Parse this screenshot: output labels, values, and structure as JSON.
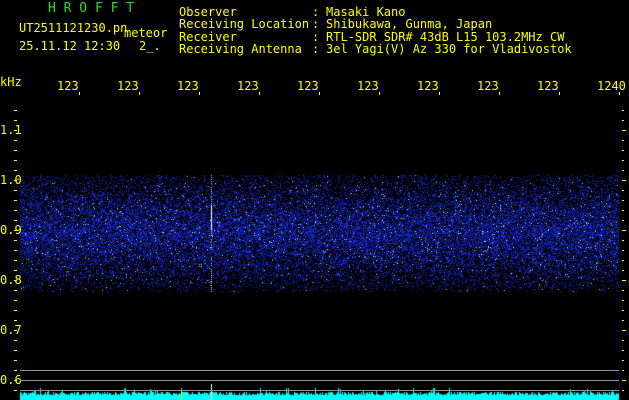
{
  "app": {
    "logo": "H R O F F T"
  },
  "file": {
    "name": "UT2511121230.pn",
    "mode": "meteor",
    "datetime": "25.11.12 12:30",
    "count": "2_."
  },
  "info": [
    {
      "label": "Observer",
      "value": "Masaki Kano"
    },
    {
      "label": "Receiving Location",
      "value": "Shibukawa, Gunma, Japan"
    },
    {
      "label": "Receiver",
      "value": "RTL-SDR SDR# 43dB L15 103.2MHz CW"
    },
    {
      "label": "Receiving Antenna",
      "value": "3el Yagi(V) Az 330 for Vladivostok"
    }
  ],
  "axis": {
    "x_unit": "kHz",
    "x_ticks": [
      "123",
      "123",
      "123",
      "123",
      "123",
      "123",
      "123",
      "123",
      "123",
      "1240"
    ],
    "y_ticks": [
      "1.1",
      "1.0",
      "0.9",
      "0.8",
      "0.7",
      "0.6"
    ]
  },
  "colors": {
    "text": "#ffff00",
    "logo": "#20e020",
    "noise": "#1a2cff",
    "spectrum": "#00ffff",
    "grid": "#909090"
  }
}
